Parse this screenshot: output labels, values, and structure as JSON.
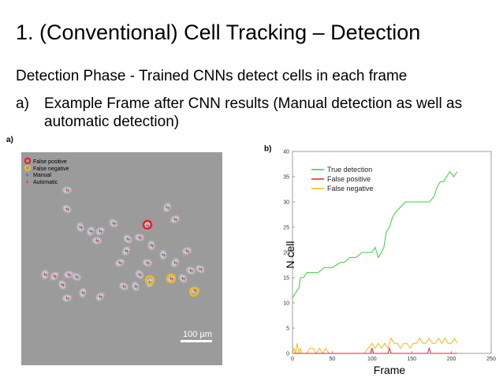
{
  "slide": {
    "title": "1.  (Conventional) Cell Tracking – Detection",
    "subtitle": "Detection Phase - Trained CNNs detect cells in each frame",
    "bullet_marker": "a)",
    "bullet_text": "Example Frame after CNN results (Manual detection as well as automatic detection)"
  },
  "panel_a": {
    "label": "a)",
    "legend": [
      "False positive",
      "False negative",
      "Manual",
      "Automatic"
    ],
    "scale_bar": "100 µm",
    "colors": {
      "background": "#9b9b9b",
      "false_positive": "#e8202a",
      "false_negative": "#f2b81d",
      "manual": "#4a4ac8",
      "automatic": "#e03030"
    }
  },
  "chart_data": {
    "type": "line",
    "panel_label": "b)",
    "xlabel": "Frame",
    "ylabel": "N cell",
    "xlim": [
      0,
      250
    ],
    "ylim": [
      0,
      40
    ],
    "xticks": [
      0,
      50,
      100,
      150,
      200,
      250
    ],
    "yticks": [
      0,
      5,
      10,
      15,
      20,
      25,
      30,
      35,
      40
    ],
    "legend_position": "top-left",
    "grid": false,
    "series": [
      {
        "name": "True detection",
        "color": "#3ccc3c",
        "x": [
          0,
          4,
          8,
          10,
          14,
          18,
          25,
          32,
          40,
          50,
          60,
          65,
          72,
          80,
          88,
          95,
          100,
          104,
          108,
          112,
          115,
          118,
          122,
          126,
          130,
          136,
          142,
          150,
          158,
          165,
          172,
          178,
          182,
          186,
          190,
          194,
          198,
          203,
          207
        ],
        "y": [
          11,
          12,
          13,
          15,
          15,
          16,
          16,
          16,
          17,
          17,
          18,
          18,
          19,
          19,
          20,
          20,
          20,
          21,
          19,
          20,
          21,
          24,
          25,
          27,
          28,
          29,
          30,
          30,
          30,
          30,
          30,
          31,
          33,
          34,
          34,
          35,
          36,
          35,
          36
        ]
      },
      {
        "name": "False positive",
        "color": "#e8202a",
        "x": [
          0,
          30,
          50,
          98,
          100,
          102,
          104,
          120,
          122,
          124,
          150,
          170,
          172,
          174,
          207
        ],
        "y": [
          0,
          0,
          0,
          0,
          1,
          0,
          0,
          0,
          1,
          0,
          0,
          0,
          1,
          0,
          0
        ]
      },
      {
        "name": "False negative",
        "color": "#f2b81d",
        "x": [
          0,
          2,
          4,
          6,
          8,
          10,
          12,
          18,
          22,
          26,
          30,
          34,
          38,
          42,
          46,
          52,
          60,
          70,
          80,
          90,
          95,
          100,
          104,
          108,
          112,
          116,
          120,
          124,
          128,
          132,
          136,
          140,
          144,
          148,
          152,
          156,
          160,
          164,
          168,
          172,
          176,
          180,
          184,
          188,
          192,
          196,
          200,
          204,
          207
        ],
        "y": [
          0,
          1,
          0,
          2,
          0,
          1,
          0,
          0,
          1,
          1,
          0,
          1,
          0,
          1,
          0,
          0,
          0,
          0,
          0,
          0,
          1,
          2,
          1,
          2,
          1,
          2,
          1,
          3,
          2,
          2,
          1,
          2,
          2,
          1,
          2,
          2,
          3,
          2,
          2,
          3,
          2,
          2,
          3,
          2,
          3,
          2,
          2,
          3,
          2
        ]
      }
    ]
  }
}
